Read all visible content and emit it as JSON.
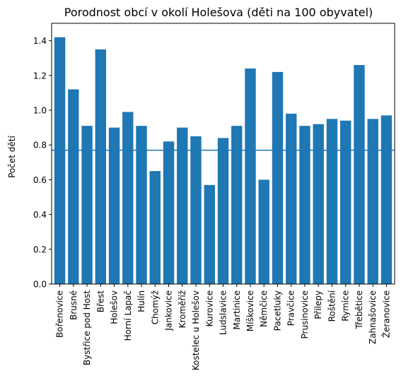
{
  "chart_data": {
    "type": "bar",
    "title": "Porodnost obcí v okolí Holešova (děti na 100 obyvatel)",
    "xlabel": "",
    "ylabel": "Počet dětí",
    "ylim": [
      0,
      1.5
    ],
    "yticks": [
      0.0,
      0.2,
      0.4,
      0.6,
      0.8,
      1.0,
      1.2,
      1.4
    ],
    "ytick_labels": [
      "0.0",
      "0.2",
      "0.4",
      "0.6",
      "0.8",
      "1.0",
      "1.2",
      "1.4"
    ],
    "grid": false,
    "bar_color": "#1f77b4",
    "reference_line": {
      "y": 0.77,
      "color": "#1f77b4"
    },
    "categories": [
      "Bořenovice",
      "Brusné",
      "Bystřice pod Host",
      "Břest",
      "Holešov",
      "Horní Lapač",
      "Hulín",
      "Chomýž",
      "Jankovice",
      "Kroměříž",
      "Kostelec u Holešov",
      "Kurovice",
      "Ludslavice",
      "Martinice",
      "Míškovice",
      "Němčice",
      "Pacetluky",
      "Pravčice",
      "Prusinovice",
      "Přílepy",
      "Roštění",
      "Rymice",
      "Třebětice",
      "Zahnašovice",
      "Žeranovice"
    ],
    "values": [
      1.42,
      1.12,
      0.91,
      1.35,
      0.9,
      0.99,
      0.91,
      0.65,
      0.82,
      0.9,
      0.85,
      0.57,
      0.84,
      0.91,
      1.24,
      0.6,
      1.22,
      0.98,
      0.91,
      0.92,
      0.95,
      0.94,
      1.26,
      0.95,
      0.97
    ]
  }
}
